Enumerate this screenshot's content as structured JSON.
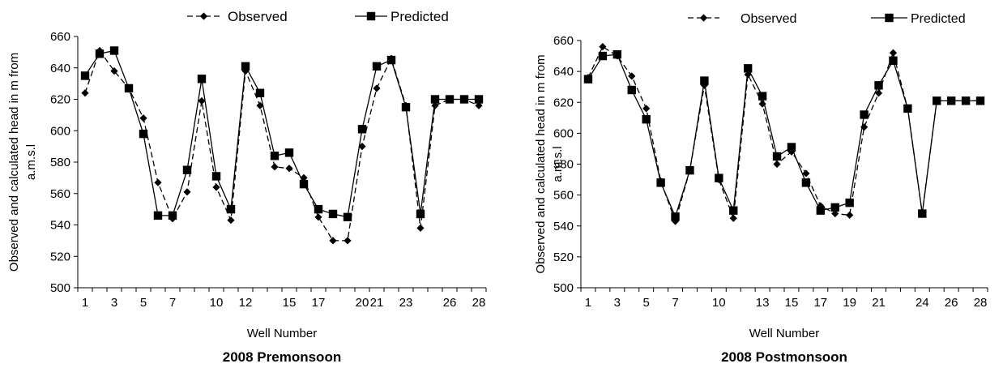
{
  "chart_data": [
    {
      "type": "line",
      "title": "2008 Premonsoon",
      "xlabel": "Well Number",
      "ylabel_lines": [
        "Observed and calculated head in m from",
        "a.m.s.l"
      ],
      "x": [
        1,
        2,
        3,
        4,
        5,
        6,
        7,
        8,
        9,
        10,
        11,
        12,
        13,
        14,
        15,
        16,
        17,
        18,
        19,
        20,
        21,
        22,
        23,
        24,
        25,
        26,
        27,
        28
      ],
      "xtick_labels": [
        "1",
        "3",
        "5",
        "7",
        "10",
        "12",
        "15",
        "17",
        "20",
        "21",
        "23",
        "26",
        "28"
      ],
      "xtick_positions": [
        1,
        3,
        5,
        7,
        10,
        12,
        15,
        17,
        20,
        21,
        23,
        26,
        28
      ],
      "ylim": [
        500,
        660
      ],
      "yticks": [
        500,
        520,
        540,
        560,
        580,
        600,
        620,
        640,
        660
      ],
      "legend_position": "top-center",
      "series": [
        {
          "name": "Observed",
          "style": "dashed",
          "marker": "diamond",
          "color": "#000000",
          "values": [
            624,
            651,
            638,
            627,
            608,
            567,
            544,
            561,
            619,
            564,
            543,
            638,
            616,
            577,
            576,
            570,
            545,
            530,
            530,
            590,
            627,
            646,
            616,
            538,
            616,
            620,
            620,
            616
          ]
        },
        {
          "name": "Predicted",
          "style": "solid",
          "marker": "square",
          "color": "#000000",
          "values": [
            635,
            649,
            651,
            627,
            598,
            546,
            546,
            575,
            633,
            571,
            550,
            641,
            624,
            584,
            586,
            566,
            550,
            547,
            545,
            601,
            641,
            645,
            615,
            547,
            620,
            620,
            620,
            620
          ]
        }
      ]
    },
    {
      "type": "line",
      "title": "2008 Postmonsoon",
      "xlabel": "Well Number",
      "ylabel_lines": [
        "Observed and calculated head in m from",
        "a.m.s.l"
      ],
      "x": [
        1,
        2,
        3,
        4,
        5,
        6,
        7,
        8,
        9,
        10,
        11,
        12,
        13,
        14,
        15,
        16,
        17,
        18,
        19,
        20,
        21,
        22,
        23,
        24,
        25,
        26,
        27,
        28
      ],
      "xtick_labels": [
        "1",
        "3",
        "5",
        "7",
        "10",
        "13",
        "15",
        "17",
        "19",
        "21",
        "24",
        "26",
        "28"
      ],
      "xtick_positions": [
        1,
        3,
        5,
        7,
        10,
        13,
        15,
        17,
        19,
        21,
        24,
        26,
        28
      ],
      "ylim": [
        500,
        660
      ],
      "yticks": [
        500,
        520,
        540,
        560,
        580,
        600,
        620,
        640,
        660
      ],
      "legend_position": "top-center",
      "series": [
        {
          "name": "Observed",
          "style": "dashed",
          "marker": "diamond",
          "color": "#000000",
          "values": [
            636,
            656,
            650,
            637,
            616,
            569,
            543,
            576,
            631,
            570,
            545,
            638,
            619,
            580,
            588,
            574,
            553,
            548,
            547,
            604,
            626,
            652,
            616,
            548,
            621,
            621,
            621,
            621
          ]
        },
        {
          "name": "Predicted",
          "style": "solid",
          "marker": "square",
          "color": "#000000",
          "values": [
            635,
            650,
            651,
            628,
            609,
            568,
            546,
            576,
            634,
            571,
            550,
            642,
            624,
            585,
            591,
            568,
            550,
            552,
            555,
            612,
            631,
            647,
            616,
            548,
            621,
            621,
            621,
            621
          ]
        }
      ]
    }
  ]
}
